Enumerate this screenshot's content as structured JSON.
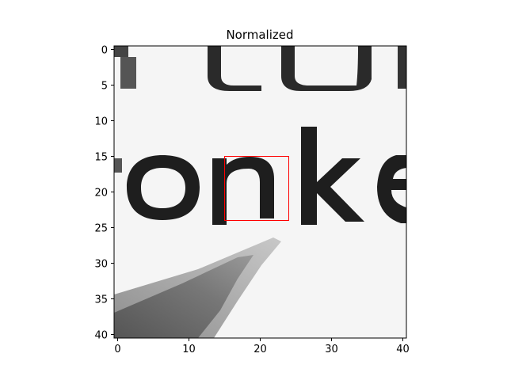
{
  "figure": {
    "title": "Normalized",
    "x_ticks": [
      "0",
      "10",
      "20",
      "30",
      "40"
    ],
    "y_ticks": [
      "0",
      "5",
      "10",
      "15",
      "20",
      "25",
      "30",
      "35",
      "40"
    ],
    "x_range": [
      -0.5,
      40.5
    ],
    "y_range": [
      -0.5,
      40.5
    ],
    "image_size": [
      41,
      41
    ],
    "visible_text_in_image": "onke",
    "highlight_box": {
      "x0": 15,
      "y0": 15,
      "x1": 24,
      "y1": 24,
      "color": "#ff0000"
    }
  }
}
